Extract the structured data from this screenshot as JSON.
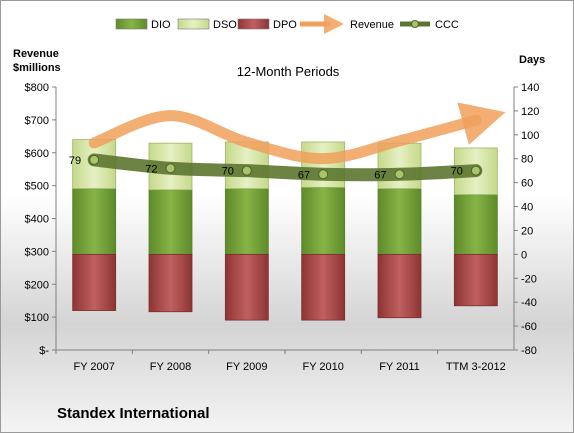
{
  "chart_data": {
    "type": "bar",
    "title": "12-Month Periods",
    "company": "Standex International",
    "left_axis": {
      "label_line1": "Revenue",
      "label_line2": "$millions",
      "range": [
        0,
        800
      ],
      "ticks": [
        0,
        100,
        200,
        300,
        400,
        500,
        600,
        700,
        800
      ],
      "tick_labels": [
        "$-",
        "$100",
        "$200",
        "$300",
        "$400",
        "$500",
        "$600",
        "$700",
        "$800"
      ]
    },
    "right_axis": {
      "label": "Days",
      "range": [
        -80,
        140
      ],
      "ticks": [
        -80,
        -60,
        -40,
        -20,
        0,
        20,
        40,
        60,
        80,
        100,
        120,
        140
      ],
      "tick_labels": [
        "-80",
        "-60",
        "-40",
        "-20",
        "0",
        "20",
        "40",
        "60",
        "80",
        "100",
        "120",
        "140"
      ]
    },
    "categories": [
      "FY 2007",
      "FY 2008",
      "FY 2009",
      "FY 2010",
      "FY 2011",
      "TTM 3-2012"
    ],
    "legend": {
      "position": "top",
      "items": [
        {
          "name": "DIO",
          "kind": "bar",
          "color": "#7aa83c"
        },
        {
          "name": "DSO",
          "kind": "bar",
          "color": "#d7e6a6"
        },
        {
          "name": "DPO",
          "kind": "bar",
          "color": "#b14f4f"
        },
        {
          "name": "Revenue",
          "kind": "arrow",
          "color": "#f0a05a"
        },
        {
          "name": "CCC",
          "kind": "line",
          "color": "#5c7530"
        }
      ]
    },
    "series": [
      {
        "name": "DIO",
        "axis": "right",
        "values": [
          55,
          54,
          55,
          56,
          55,
          50
        ],
        "color": "#7aa83c"
      },
      {
        "name": "DSO",
        "axis": "right",
        "values": [
          41,
          39,
          39,
          38,
          38,
          39
        ],
        "color": "#d7e6a6"
      },
      {
        "name": "DPO",
        "axis": "right",
        "values": [
          -47,
          -48,
          -55,
          -55,
          -53,
          -43
        ],
        "color": "#b14f4f"
      },
      {
        "name": "Revenue",
        "axis": "left",
        "values": [
          630,
          713,
          632,
          582,
          636,
          699
        ],
        "color": "#f0a05a"
      },
      {
        "name": "CCC",
        "axis": "right",
        "values": [
          79,
          72,
          70,
          67,
          67,
          70
        ],
        "color": "#5c7530",
        "labels": [
          "79",
          "72",
          "70",
          "67",
          "67",
          "70"
        ]
      }
    ],
    "grid": false
  }
}
